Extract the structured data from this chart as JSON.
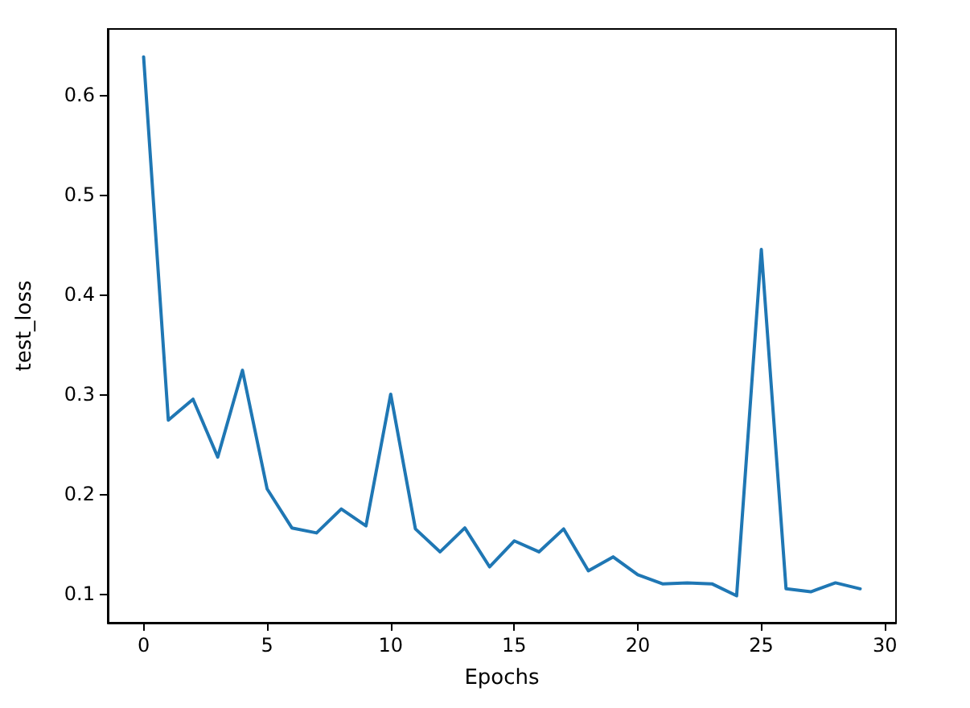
{
  "chart_data": {
    "type": "line",
    "xlabel": "Epochs",
    "ylabel": "test_loss",
    "x": [
      0,
      1,
      2,
      3,
      4,
      5,
      6,
      7,
      8,
      9,
      10,
      11,
      12,
      13,
      14,
      15,
      16,
      17,
      18,
      19,
      20,
      21,
      22,
      23,
      24,
      25,
      26,
      27,
      28,
      29
    ],
    "values": [
      0.638,
      0.274,
      0.295,
      0.237,
      0.324,
      0.205,
      0.166,
      0.161,
      0.185,
      0.168,
      0.3,
      0.165,
      0.142,
      0.166,
      0.127,
      0.153,
      0.142,
      0.165,
      0.123,
      0.137,
      0.119,
      0.11,
      0.111,
      0.11,
      0.098,
      0.445,
      0.105,
      0.102,
      0.111,
      0.105
    ],
    "color": "#1f77b4",
    "xlim": [
      -1.45,
      30.45
    ],
    "ylim": [
      0.071,
      0.666
    ],
    "xticks": [
      0,
      5,
      10,
      15,
      20,
      25,
      30
    ],
    "yticks": [
      0.1,
      0.2,
      0.3,
      0.4,
      0.5,
      0.6
    ],
    "grid": false,
    "marker": "none",
    "line_style": "solid"
  }
}
